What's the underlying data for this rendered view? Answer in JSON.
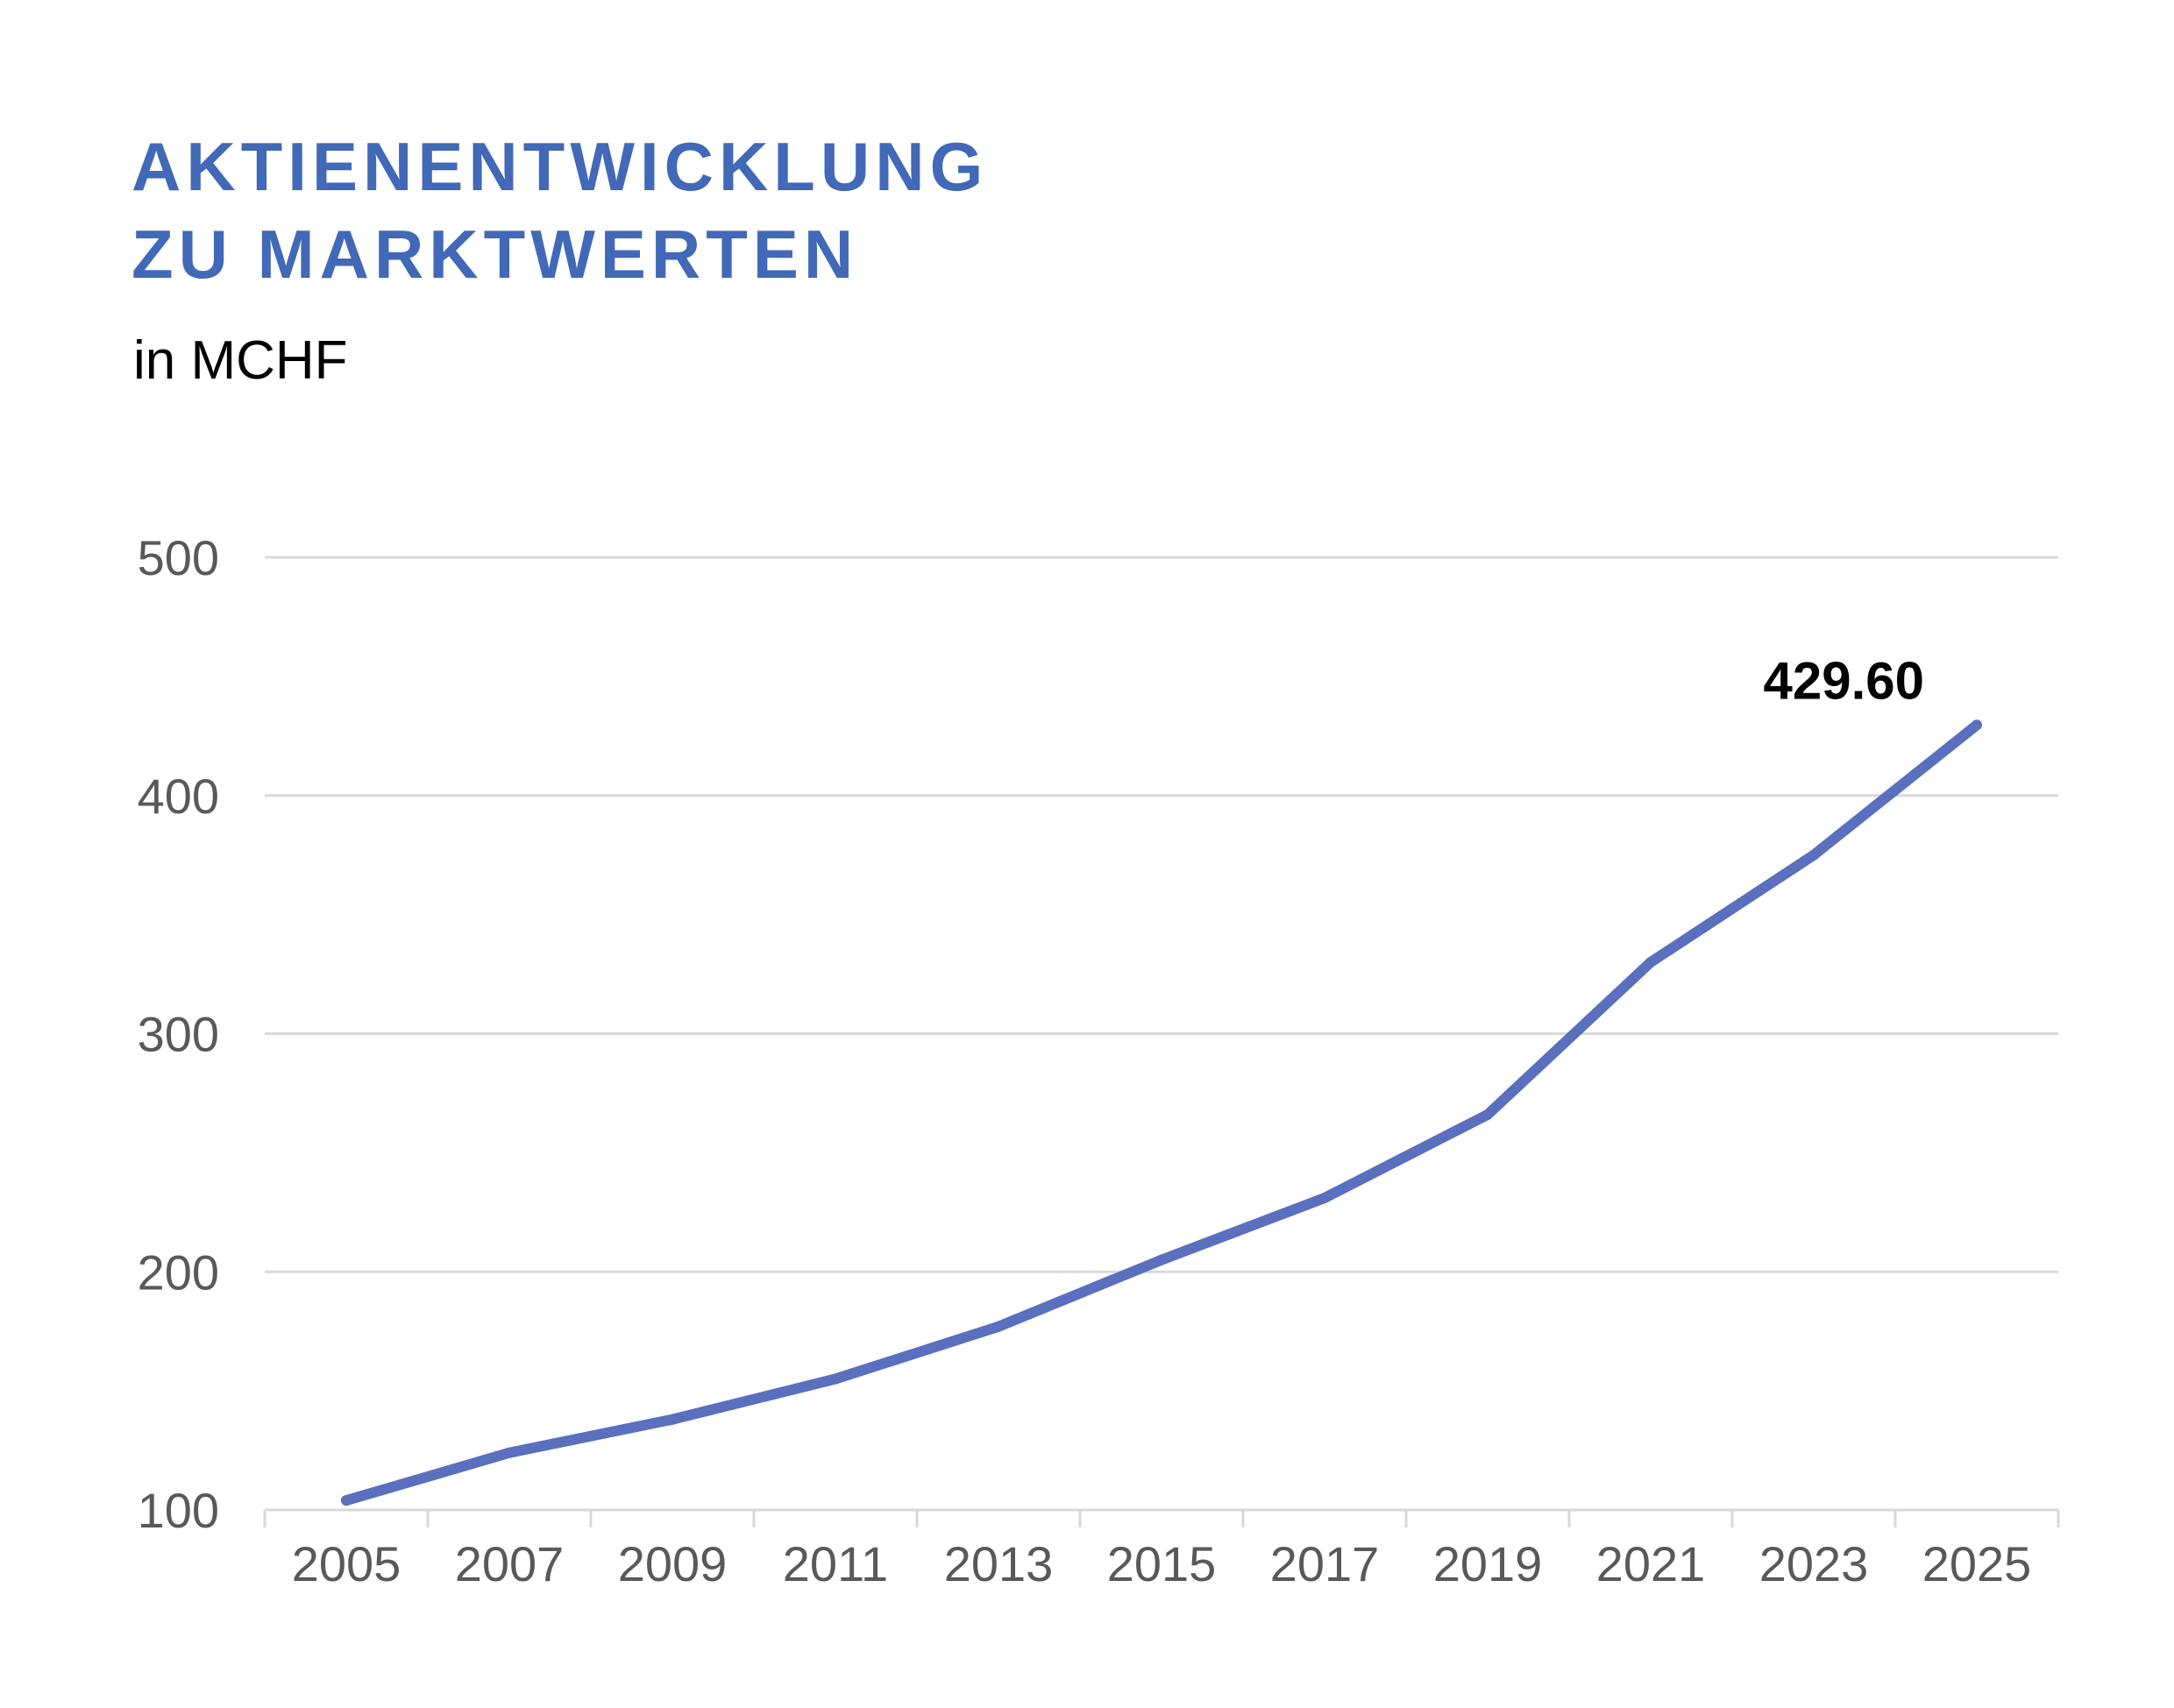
{
  "title_lines": [
    "AKTIENENTWICKLUNG",
    "ZU MARKTWERTEN"
  ],
  "subtitle": "in MCHF",
  "colors": {
    "title": "#4169b8",
    "line": "#5b6fbf",
    "grid": "#d9d9d9",
    "axis_text": "#595959"
  },
  "chart_data": {
    "type": "line",
    "title": "AKTIENENTWICKLUNG ZU MARKTWERTEN",
    "subtitle": "in MCHF",
    "xlabel": "",
    "ylabel": "",
    "x": [
      2005,
      2007,
      2009,
      2011,
      2013,
      2015,
      2017,
      2019,
      2021,
      2023,
      2025
    ],
    "x_tick_labels": [
      "2005",
      "2007",
      "2009",
      "2011",
      "2013",
      "2015",
      "2017",
      "2019",
      "2021",
      "2023",
      "2025"
    ],
    "y_ticks": [
      100,
      200,
      300,
      400,
      500
    ],
    "ylim": [
      100,
      500
    ],
    "grid": true,
    "legend": "none",
    "series": [
      {
        "values": [
          104,
          124,
          138,
          155,
          177,
          205,
          231,
          266,
          330,
          375,
          429.6
        ]
      }
    ],
    "annotations": [
      {
        "x": 2025,
        "y": 429.6,
        "text": "429.60"
      }
    ]
  }
}
